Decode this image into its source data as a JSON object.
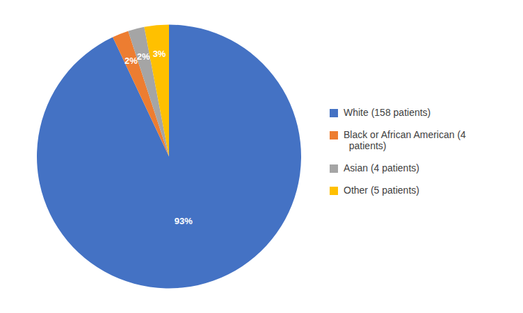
{
  "chart_data": {
    "type": "pie",
    "categories": [
      "White (158 patients)",
      "Black or African American (4\n  patients)",
      "Asian (4 patients)",
      "Other (5 patients)"
    ],
    "values": [
      93,
      2,
      2,
      3
    ],
    "value_labels": [
      "93%",
      "2%",
      "2%",
      "3%"
    ],
    "colors": [
      "#4472C4",
      "#ED7D31",
      "#A5A5A5",
      "#FFC000"
    ],
    "data_labels": true,
    "legend": "right"
  }
}
